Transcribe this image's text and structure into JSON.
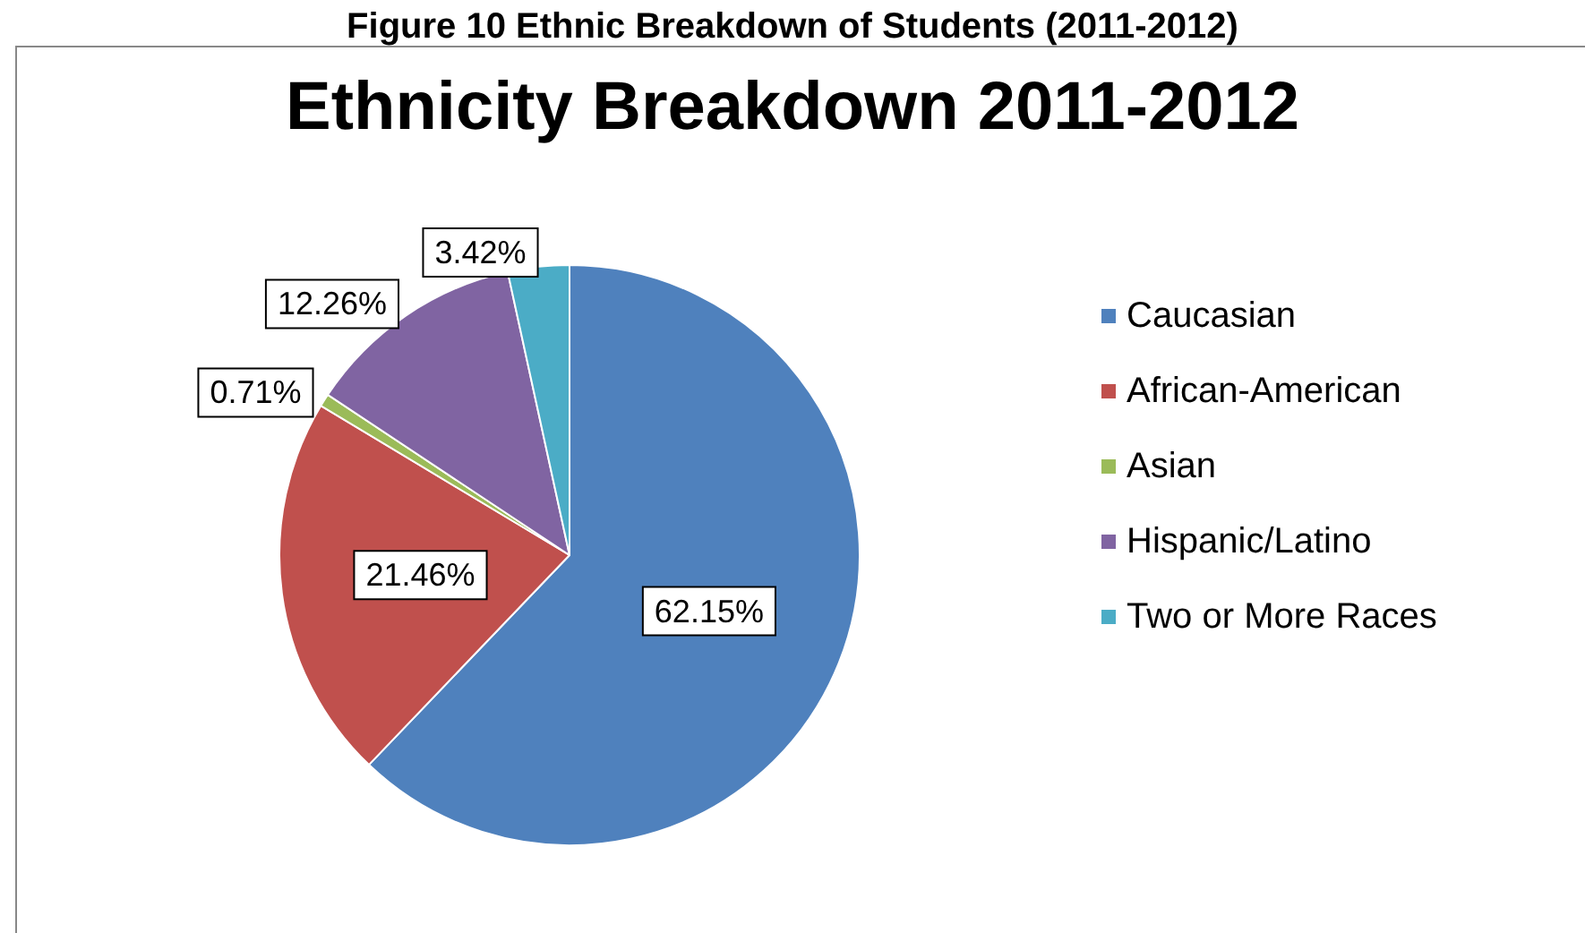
{
  "chart_data": {
    "type": "pie",
    "title": "Ethnicity Breakdown 2011-2012",
    "annotations": [
      "Figure 10 Ethnic Breakdown of Students (2011-2012)"
    ],
    "categories": [
      "Caucasian",
      "African-American",
      "Asian",
      "Hispanic/Latino",
      "Two or More Races"
    ],
    "values": [
      62.15,
      21.46,
      0.71,
      12.26,
      3.42
    ],
    "value_labels": [
      "62.15%",
      "21.46%",
      "0.71%",
      "12.26%",
      "3.42%"
    ],
    "colors": [
      "#4f81bd",
      "#c0504d",
      "#9bbb59",
      "#8064a2",
      "#4bacc6"
    ],
    "legend": "right"
  }
}
